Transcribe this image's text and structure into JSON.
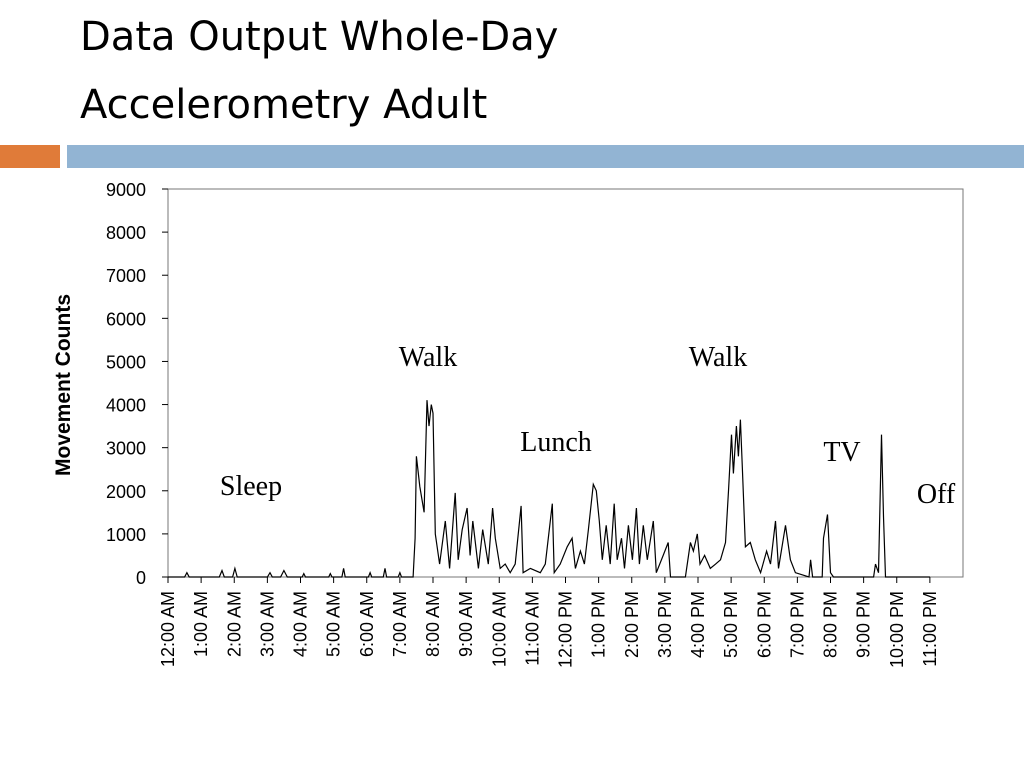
{
  "chart_data": {
    "type": "line",
    "title": [
      "Data Output Whole-Day",
      "Accelerometry Adult"
    ],
    "ylabel": "Movement Counts",
    "xlim": [
      0,
      24
    ],
    "ylim": [
      0,
      9000
    ],
    "yticks": [
      0,
      1000,
      2000,
      3000,
      4000,
      5000,
      6000,
      7000,
      8000,
      9000
    ],
    "xticks": [
      {
        "value": 0,
        "label": "12:00 AM"
      },
      {
        "value": 1,
        "label": "1:00 AM"
      },
      {
        "value": 2,
        "label": "2:00 AM"
      },
      {
        "value": 3,
        "label": "3:00 AM"
      },
      {
        "value": 4,
        "label": "4:00 AM"
      },
      {
        "value": 5,
        "label": "5:00 AM"
      },
      {
        "value": 6,
        "label": "6:00 AM"
      },
      {
        "value": 7,
        "label": "7:00 AM"
      },
      {
        "value": 8,
        "label": "8:00 AM"
      },
      {
        "value": 9,
        "label": "9:00 AM"
      },
      {
        "value": 10,
        "label": "10:00 AM"
      },
      {
        "value": 11,
        "label": "11:00 AM"
      },
      {
        "value": 12,
        "label": "12:00 PM"
      },
      {
        "value": 13,
        "label": "1:00 PM"
      },
      {
        "value": 14,
        "label": "2:00 PM"
      },
      {
        "value": 15,
        "label": "3:00 PM"
      },
      {
        "value": 16,
        "label": "4:00 PM"
      },
      {
        "value": 17,
        "label": "5:00 PM"
      },
      {
        "value": 18,
        "label": "6:00 PM"
      },
      {
        "value": 19,
        "label": "7:00 PM"
      },
      {
        "value": 20,
        "label": "8:00 PM"
      },
      {
        "value": 21,
        "label": "9:00 PM"
      },
      {
        "value": 22,
        "label": "10:00 PM"
      },
      {
        "value": 23,
        "label": "11:00 PM"
      }
    ],
    "annotations": [
      "Sleep",
      "Walk",
      "Lunch",
      "Walk",
      "TV",
      "Off"
    ],
    "series": [
      {
        "color": "#000000",
        "x": [
          0,
          0.5,
          0.57,
          0.64,
          1.55,
          1.63,
          1.7,
          1.95,
          2.02,
          2.09,
          3.0,
          3.08,
          3.15,
          3.4,
          3.5,
          3.6,
          4.05,
          4.1,
          4.15,
          4.85,
          4.9,
          4.95,
          5.25,
          5.3,
          5.35,
          6.05,
          6.1,
          6.15,
          6.5,
          6.55,
          6.6,
          6.95,
          7.0,
          7.05,
          7.4,
          7.46,
          7.5,
          7.6,
          7.73,
          7.82,
          7.88,
          7.95,
          8.0,
          8.07,
          8.2,
          8.37,
          8.5,
          8.67,
          8.76,
          8.88,
          9.03,
          9.12,
          9.2,
          9.37,
          9.5,
          9.67,
          9.8,
          9.88,
          10.03,
          10.18,
          10.33,
          10.48,
          10.66,
          10.72,
          10.94,
          11.24,
          11.39,
          11.6,
          11.66,
          11.84,
          12.05,
          12.2,
          12.3,
          12.45,
          12.57,
          12.69,
          12.84,
          12.93,
          13.02,
          13.11,
          13.23,
          13.35,
          13.47,
          13.56,
          13.69,
          13.78,
          13.9,
          14.02,
          14.14,
          14.23,
          14.35,
          14.47,
          14.65,
          14.74,
          14.95,
          15.1,
          15.17,
          15.62,
          15.77,
          15.86,
          15.98,
          16.06,
          16.2,
          16.37,
          16.53,
          16.68,
          16.83,
          16.92,
          17.01,
          17.07,
          17.16,
          17.22,
          17.28,
          17.34,
          17.43,
          17.58,
          17.73,
          17.89,
          18.07,
          18.19,
          18.34,
          18.43,
          18.64,
          18.79,
          18.94,
          19.35,
          19.4,
          19.46,
          19.75,
          19.79,
          19.91,
          20.0,
          20.09,
          21.3,
          21.36,
          21.45,
          21.54,
          21.6,
          21.66,
          23.0
        ],
        "values": [
          0,
          0,
          100,
          0,
          0,
          150,
          0,
          0,
          200,
          0,
          0,
          100,
          0,
          0,
          150,
          0,
          0,
          80,
          0,
          0,
          80,
          0,
          0,
          200,
          0,
          0,
          100,
          0,
          0,
          200,
          0,
          0,
          100,
          0,
          0,
          900,
          2800,
          2100,
          1500,
          4100,
          3500,
          4000,
          3800,
          1000,
          300,
          1300,
          200,
          1950,
          400,
          1100,
          1600,
          500,
          1300,
          200,
          1100,
          300,
          1600,
          900,
          200,
          300,
          100,
          300,
          1650,
          100,
          200,
          100,
          300,
          1700,
          100,
          300,
          700,
          900,
          200,
          600,
          300,
          1100,
          2150,
          2000,
          1300,
          400,
          1200,
          300,
          1700,
          400,
          900,
          200,
          1200,
          400,
          1600,
          300,
          1200,
          400,
          1300,
          100,
          500,
          800,
          0,
          0,
          800,
          600,
          1000,
          300,
          500,
          200,
          300,
          400,
          800,
          2000,
          3300,
          2400,
          3500,
          2800,
          3650,
          2500,
          700,
          800,
          400,
          100,
          600,
          300,
          1300,
          200,
          1200,
          400,
          100,
          0,
          400,
          0,
          0,
          900,
          1450,
          100,
          0,
          0,
          300,
          100,
          3300,
          1400,
          0,
          0
        ]
      }
    ]
  }
}
